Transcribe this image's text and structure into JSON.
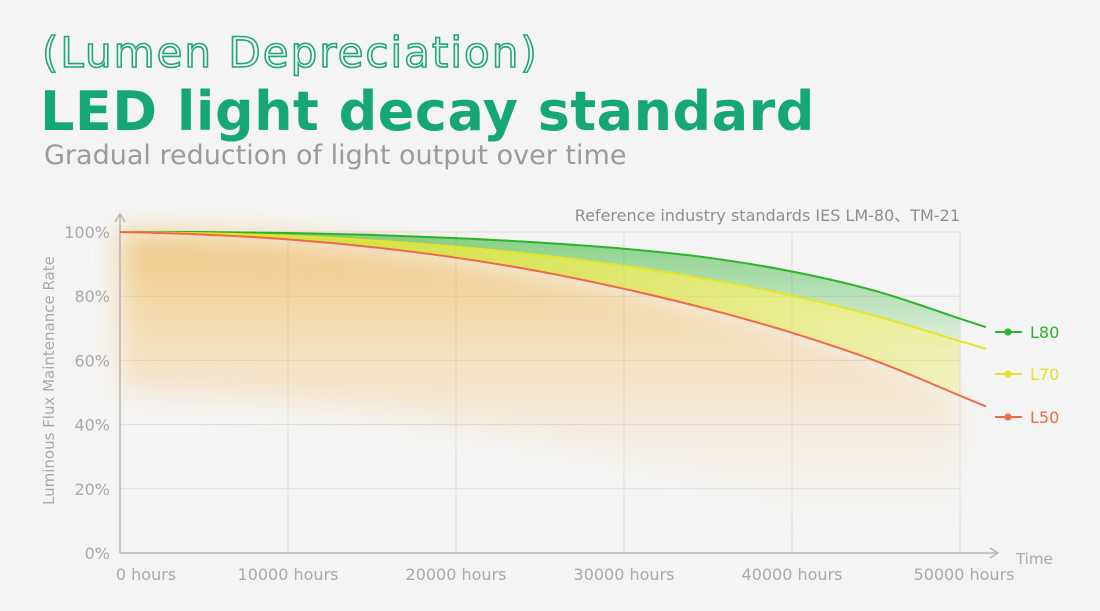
{
  "header": {
    "kicker": "(Lumen Depreciation)",
    "title": "LED light decay standard",
    "subtitle": "Gradual reduction of light output over time"
  },
  "colors": {
    "accent": "#16a779",
    "l80": "#2bb32b",
    "l70": "#e4e42a",
    "l50": "#ee6a45",
    "axis": "#b5b5b5",
    "grid": "#dddddd"
  },
  "chart_data": {
    "type": "line",
    "note": "Reference industry standards  IES LM-80、TM-21",
    "xlabel": "Time",
    "ylabel": "Luminous Flux Maintenance Rate",
    "xlim": [
      0,
      50000
    ],
    "ylim": [
      0,
      100
    ],
    "x_ticks": [
      0,
      10000,
      20000,
      30000,
      40000,
      50000
    ],
    "x_tick_labels": [
      "0 hours",
      "10000 hours",
      "20000 hours",
      "30000 hours",
      "40000 hours",
      "50000 hours"
    ],
    "y_ticks": [
      0,
      20,
      40,
      60,
      80,
      100
    ],
    "y_tick_labels": [
      "0%",
      "20%",
      "40%",
      "60%",
      "80%",
      "100%"
    ],
    "grid": true,
    "legend_position": "right",
    "x": [
      0,
      5000,
      10000,
      15000,
      20000,
      25000,
      30000,
      35000,
      40000,
      45000,
      50000
    ],
    "series": [
      {
        "name": "L80",
        "color": "#2bb32b",
        "values": [
          100,
          100,
          99.7,
          99.1,
          98.1,
          96.7,
          94.8,
          92.0,
          87.7,
          81.6,
          73.0
        ]
      },
      {
        "name": "L70",
        "color": "#e4e42a",
        "values": [
          100,
          99.6,
          98.8,
          97.4,
          95.4,
          92.8,
          89.5,
          85.3,
          80.2,
          73.8,
          66.0
        ]
      },
      {
        "name": "L50",
        "color": "#ee6a45",
        "values": [
          100,
          99.2,
          97.7,
          95.3,
          92.0,
          87.7,
          82.3,
          76.0,
          68.6,
          59.8,
          49.0
        ]
      }
    ]
  }
}
